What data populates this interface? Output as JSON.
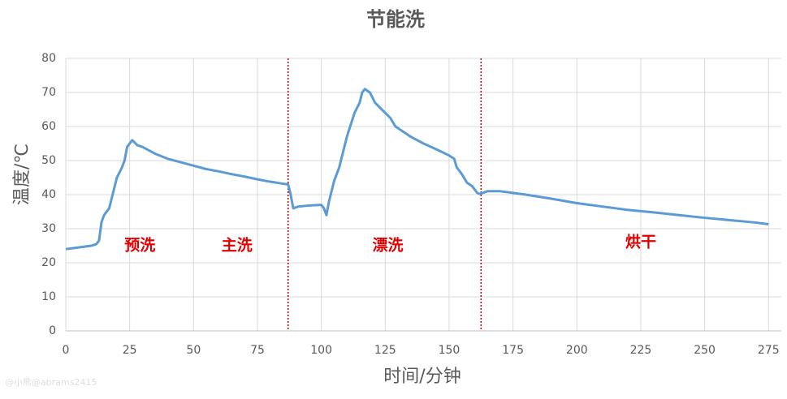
{
  "chart_data": {
    "type": "line",
    "title": "节能洗",
    "x_label": "时间/分钟",
    "y_label": "温度/℃",
    "x": [
      0,
      5,
      10,
      12,
      13,
      14,
      15,
      17,
      19,
      20,
      22,
      23,
      24,
      26,
      28,
      30,
      35,
      40,
      45,
      50,
      55,
      60,
      65,
      70,
      75,
      80,
      85,
      87,
      88,
      89,
      91,
      95,
      100,
      101,
      102,
      103,
      105,
      107,
      110,
      113,
      115,
      116,
      117,
      119,
      121,
      123,
      125,
      127,
      129,
      132,
      135,
      140,
      145,
      150,
      152,
      153,
      155,
      157,
      159,
      161,
      162,
      165,
      170,
      175,
      180,
      190,
      200,
      210,
      220,
      230,
      240,
      250,
      260,
      270,
      275
    ],
    "series": [
      {
        "name": "温度",
        "color": "#5b9bd5",
        "values": [
          24,
          24.5,
          25,
          25.5,
          26.5,
          32,
          34,
          36,
          42,
          45,
          48,
          50,
          54,
          56,
          54.5,
          54,
          52,
          50.5,
          49.5,
          48.5,
          47.5,
          46.8,
          46,
          45.3,
          44.5,
          43.8,
          43.2,
          43,
          40,
          36,
          36.5,
          36.8,
          37,
          36,
          34,
          38,
          44,
          48,
          57,
          64,
          67,
          70,
          71,
          70,
          67,
          65.5,
          64,
          62.5,
          60,
          58.5,
          57,
          55,
          53.3,
          51.5,
          50.5,
          48,
          46,
          43.5,
          42.5,
          40.5,
          40.2,
          41,
          41,
          40.5,
          40,
          38.8,
          37.5,
          36.5,
          35.5,
          34.8,
          34,
          33.2,
          32.5,
          31.8,
          31.3
        ]
      }
    ],
    "xlim": [
      0,
      280
    ],
    "ylim": [
      0,
      80
    ],
    "xticks": [
      0,
      25,
      50,
      75,
      100,
      125,
      150,
      175,
      200,
      225,
      250,
      275
    ],
    "yticks": [
      0,
      10,
      20,
      30,
      40,
      50,
      60,
      70,
      80
    ],
    "grid": true,
    "phase_boundaries": [
      87,
      162.5
    ],
    "boundary_color": "#c00000",
    "annotations": [
      {
        "text": "预洗",
        "x": 29,
        "y": 25
      },
      {
        "text": "主洗",
        "x": 67,
        "y": 25
      },
      {
        "text": "漂洗",
        "x": 126,
        "y": 25
      },
      {
        "text": "烘干",
        "x": 225,
        "y": 26
      }
    ],
    "annotation_color": "#e00000",
    "watermark": "@小熊@abrams2415"
  }
}
